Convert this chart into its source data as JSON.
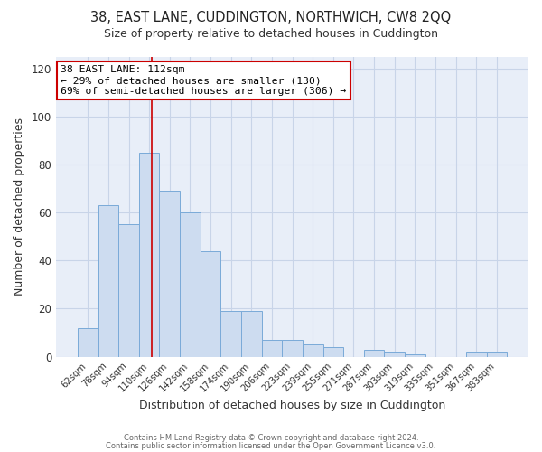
{
  "title": "38, EAST LANE, CUDDINGTON, NORTHWICH, CW8 2QQ",
  "subtitle": "Size of property relative to detached houses in Cuddington",
  "xlabel": "Distribution of detached houses by size in Cuddington",
  "ylabel": "Number of detached properties",
  "bar_fill_color": "#cddcf0",
  "bar_edge_color": "#7aaad8",
  "bg_color": "#e8eef8",
  "grid_color": "#c8d4e8",
  "categories": [
    "62sqm",
    "78sqm",
    "94sqm",
    "110sqm",
    "126sqm",
    "142sqm",
    "158sqm",
    "174sqm",
    "190sqm",
    "206sqm",
    "223sqm",
    "239sqm",
    "255sqm",
    "271sqm",
    "287sqm",
    "303sqm",
    "319sqm",
    "335sqm",
    "351sqm",
    "367sqm",
    "383sqm"
  ],
  "values": [
    12,
    63,
    55,
    85,
    69,
    60,
    44,
    19,
    19,
    7,
    7,
    5,
    4,
    0,
    3,
    2,
    1,
    0,
    0,
    2,
    2
  ],
  "ylim": [
    0,
    125
  ],
  "yticks": [
    0,
    20,
    40,
    60,
    80,
    100,
    120
  ],
  "annotation_title": "38 EAST LANE: 112sqm",
  "annotation_line1": "← 29% of detached houses are smaller (130)",
  "annotation_line2": "69% of semi-detached houses are larger (306) →",
  "annotation_box_color": "#ffffff",
  "annotation_box_edge": "#cc0000",
  "red_line_index": 3.125,
  "footer1": "Contains HM Land Registry data © Crown copyright and database right 2024.",
  "footer2": "Contains public sector information licensed under the Open Government Licence v3.0."
}
